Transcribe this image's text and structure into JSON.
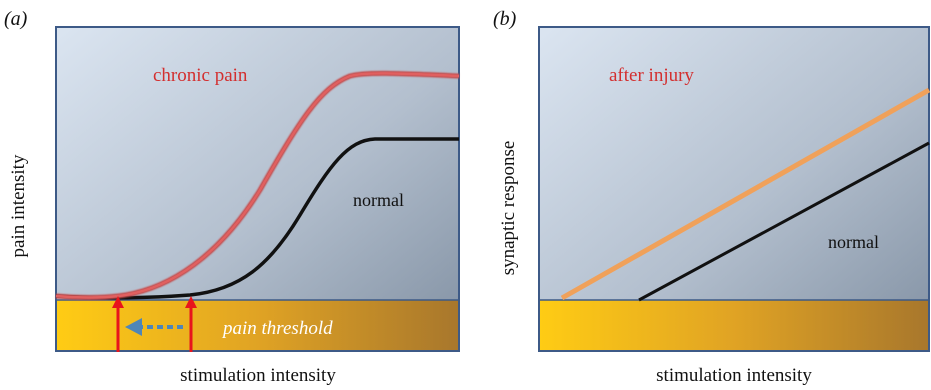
{
  "panels": [
    {
      "id": "a",
      "letter": "(a)",
      "ylabel": "pain intensity",
      "xlabel": "stimulation intensity",
      "curve_labels": {
        "highlight": "chronic pain",
        "normal": "normal"
      },
      "threshold_label": "pain threshold",
      "colors": {
        "highlight": "#d9403a",
        "normal": "#111111",
        "arrow": "#e8141c",
        "shift_arrow": "#4f86b8"
      }
    },
    {
      "id": "b",
      "letter": "(b)",
      "ylabel": "synaptic response",
      "xlabel": "stimulation intensity",
      "curve_labels": {
        "highlight": "after injury",
        "normal": "normal"
      },
      "colors": {
        "highlight": "#f0a15a",
        "normal": "#111111"
      }
    }
  ],
  "colors": {
    "title_red": "#d32f2f",
    "frame": "#3d5a87",
    "bg_light": "#d8e2ef",
    "bg_dark": "#8795a6",
    "threshold_light": "#ffc81a",
    "threshold_dark": "#b27a25"
  }
}
